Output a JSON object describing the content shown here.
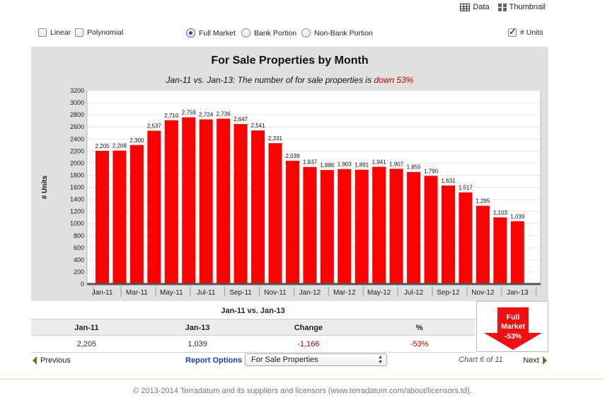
{
  "topnav": {
    "data_label": "Data",
    "thumbnail_label": "Thumbnail"
  },
  "options": {
    "linear": {
      "label": "Linear",
      "checked": false
    },
    "polynomial": {
      "label": "Polynomial",
      "checked": false
    },
    "full_market": {
      "label": "Full Market",
      "selected": true
    },
    "bank_portion": {
      "label": "Bank Portion",
      "selected": false
    },
    "non_bank_portion": {
      "label": "Non-Bank Portion",
      "selected": false
    },
    "units": {
      "label": "# Units",
      "checked": true
    }
  },
  "chart": {
    "title": "For Sale Properties by Month",
    "subtitle_prefix": "Jan-11 vs. Jan-13: The number of for sale properties is ",
    "subtitle_change": "down 53%"
  },
  "chart_data": {
    "type": "bar",
    "title": "For Sale Properties by Month",
    "ylabel": "# Units",
    "xlabel": "",
    "ylim": [
      0,
      3200
    ],
    "yticks": [
      0,
      200,
      400,
      600,
      800,
      1000,
      1200,
      1400,
      1600,
      1800,
      2000,
      2200,
      2400,
      2600,
      2800,
      3000,
      3200
    ],
    "categories": [
      "Jan-11",
      "Feb-11",
      "Mar-11",
      "Apr-11",
      "May-11",
      "Jun-11",
      "Jul-11",
      "Aug-11",
      "Sep-11",
      "Oct-11",
      "Nov-11",
      "Dec-11",
      "Jan-12",
      "Feb-12",
      "Mar-12",
      "Apr-12",
      "May-12",
      "Jun-12",
      "Jul-12",
      "Aug-12",
      "Sep-12",
      "Oct-12",
      "Nov-12",
      "Dec-12",
      "Jan-13"
    ],
    "xtick_labels": [
      "Jan-11",
      "Mar-11",
      "May-11",
      "Jul-11",
      "Sep-11",
      "Nov-11",
      "Jan-12",
      "Mar-12",
      "May-12",
      "Jul-12",
      "Sep-12",
      "Nov-12",
      "Jan-13"
    ],
    "values": [
      2205,
      2208,
      2300,
      2537,
      2710,
      2759,
      2724,
      2736,
      2647,
      2541,
      2331,
      2039,
      1937,
      1886,
      1903,
      1891,
      1941,
      1907,
      1855,
      1790,
      1631,
      1517,
      1295,
      1103,
      1039
    ],
    "value_labels": [
      "2,205",
      "2,208",
      "2,300",
      "2,537",
      "2,710",
      "2,759",
      "2,724",
      "2,736",
      "2,647",
      "2,541",
      "2,331",
      "2,039",
      "1,937",
      "1,886",
      "1,903",
      "1,891",
      "1,941",
      "1,907",
      "1,855",
      "1,790",
      "1,631",
      "1,517",
      "1,295",
      "1,103",
      "1,039"
    ],
    "bar_color": "#ff0000",
    "grid": true
  },
  "comparison": {
    "heading": "Jan-11 vs. Jan-13",
    "headers": [
      "Jan-11",
      "Jan-13",
      "Change",
      "%"
    ],
    "values": [
      "2,205",
      "1,039",
      "-1,166",
      "-53%"
    ]
  },
  "badge": {
    "line1": "Full",
    "line2": "Market",
    "line3": "-53%",
    "color": "#ee1111"
  },
  "nav": {
    "previous": "Previous",
    "next": "Next",
    "report_options": "Report Options",
    "report_selected": "For Sale Properties",
    "chart_count": "Chart 6 of 11"
  },
  "footer": "© 2013-2014 Terradatum and its suppliers and licensors (www.terradatum.com/about/licensors.td)."
}
